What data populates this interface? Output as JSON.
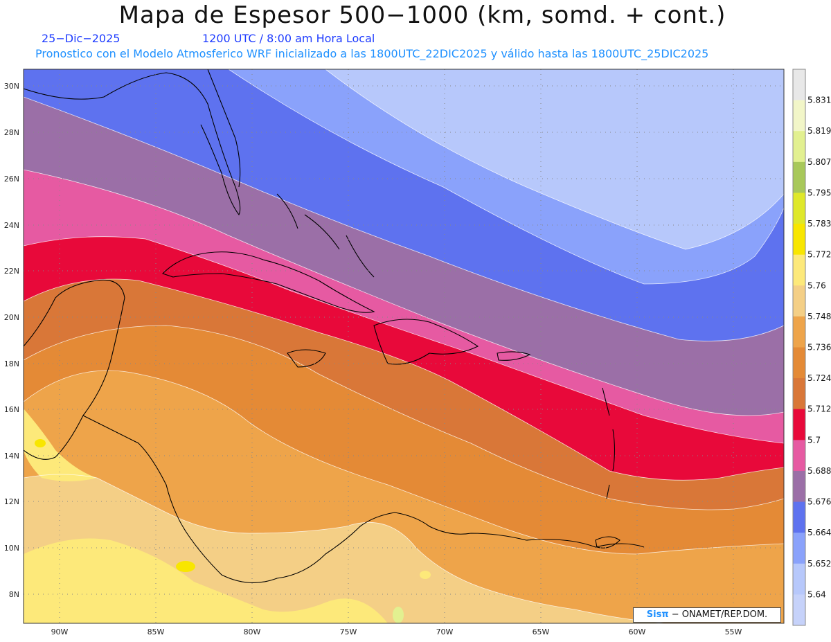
{
  "header": {
    "title": "Mapa de Espesor 500−1000 (km, somd. + cont.)",
    "date": "25−Dic−2025",
    "time": "1200 UTC / 8:00 am Hora Local",
    "forecast_note": "Pronostico con el Modelo Atmosferico WRF inicializado a las 1800UTC_22DIC2025 y válido hasta las  1800UTC_25DIC2025"
  },
  "map": {
    "lat_labels": [
      "30N",
      "28N",
      "26N",
      "24N",
      "22N",
      "20N",
      "18N",
      "16N",
      "14N",
      "12N",
      "10N",
      "8N"
    ],
    "lon_labels": [
      "90W",
      "85W",
      "80W",
      "75W",
      "70W",
      "65W",
      "60W",
      "55W"
    ],
    "grid": "dotted",
    "colorbar": {
      "levels": [
        "5.831",
        "5.819",
        "5.807",
        "5.795",
        "5.783",
        "5.772",
        "5.76",
        "5.748",
        "5.736",
        "5.724",
        "5.712",
        "5.7",
        "5.688",
        "5.676",
        "5.664",
        "5.652",
        "5.64"
      ],
      "colors": [
        "#e8e8e8",
        "#f2f6c8",
        "#e2f090",
        "#a8c85a",
        "#dfe82a",
        "#f8e600",
        "#fde97a",
        "#f4cf86",
        "#eea44a",
        "#e48a36",
        "#d97738",
        "#e8093a",
        "#e65aa2",
        "#9b6fa7",
        "#5e72ef",
        "#8aa2fb",
        "#b7c8fb",
        "#c6d2fa"
      ]
    }
  },
  "credit": {
    "prefix": "Sisπ",
    "text": "− ONAMET/REP.DOM."
  }
}
